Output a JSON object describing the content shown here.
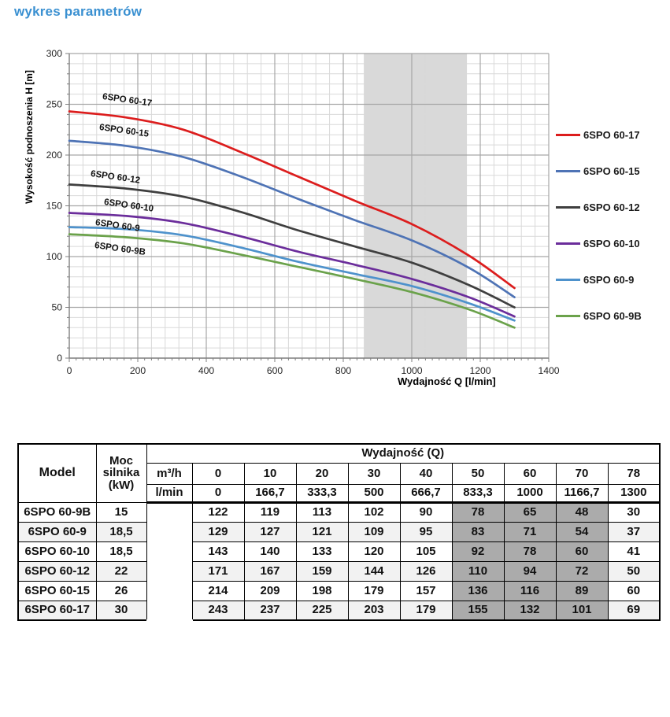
{
  "page_title": "wykres parametrów",
  "accent_color": "#3a90d1",
  "chart_data": {
    "type": "line",
    "title": "",
    "xlabel": "Wydajność Q [l/min]",
    "ylabel": "Wysokość podnoszenia H [m]",
    "xlim": [
      0,
      1400
    ],
    "ylim": [
      0,
      300
    ],
    "x_ticks": [
      "0",
      "200",
      "400",
      "600",
      "800",
      "1000",
      "1200",
      "1400"
    ],
    "y_ticks": [
      "0",
      "50",
      "100",
      "150",
      "200",
      "250",
      "300"
    ],
    "grid": "on",
    "legend_position": "right",
    "duty_range_band": {
      "from": 860,
      "to": 1160,
      "color": "#d9d9d9"
    },
    "x": [
      0,
      166.7,
      333.3,
      500,
      666.7,
      833.3,
      1000,
      1166.7,
      1300
    ],
    "series": [
      {
        "name": "6SPO 60-17",
        "color": "#dc1d1d",
        "values": [
          243,
          237,
          225,
          203,
          179,
          155,
          132,
          101,
          69
        ]
      },
      {
        "name": "6SPO 60-15",
        "color": "#4e73b5",
        "values": [
          214,
          209,
          198,
          179,
          157,
          136,
          116,
          89,
          60
        ]
      },
      {
        "name": "6SPO 60-12",
        "color": "#3f3f3f",
        "values": [
          171,
          167,
          159,
          144,
          126,
          110,
          94,
          72,
          50
        ]
      },
      {
        "name": "6SPO 60-10",
        "color": "#6b2d9b",
        "values": [
          143,
          140,
          133,
          120,
          105,
          92,
          78,
          60,
          41
        ]
      },
      {
        "name": "6SPO 60-9",
        "color": "#4e92cc",
        "values": [
          129,
          127,
          121,
          109,
          95,
          83,
          71,
          54,
          37
        ]
      },
      {
        "name": "6SPO 60-9B",
        "color": "#6ba24b",
        "values": [
          122,
          119,
          113,
          102,
          90,
          78,
          65,
          48,
          30
        ]
      }
    ]
  },
  "table": {
    "header": {
      "model": "Model",
      "power": "Moc silnika (kW)",
      "flow_group": "Wydajność (Q)",
      "unit_row_1_label": "m³/h",
      "unit_row_1_values": [
        "0",
        "10",
        "20",
        "30",
        "40",
        "50",
        "60",
        "70",
        "78"
      ],
      "unit_row_2_label": "l/min",
      "unit_row_2_values": [
        "0",
        "166,7",
        "333,3",
        "500",
        "666,7",
        "833,3",
        "1000",
        "1166,7",
        "1300"
      ]
    },
    "rows": [
      {
        "model": "6SPO 60-9B",
        "power": "15",
        "values": [
          "122",
          "119",
          "113",
          "102",
          "90",
          "78",
          "65",
          "48",
          "30"
        ]
      },
      {
        "model": "6SPO 60-9",
        "power": "18,5",
        "values": [
          "129",
          "127",
          "121",
          "109",
          "95",
          "83",
          "71",
          "54",
          "37"
        ]
      },
      {
        "model": "6SPO 60-10",
        "power": "18,5",
        "values": [
          "143",
          "140",
          "133",
          "120",
          "105",
          "92",
          "78",
          "60",
          "41"
        ]
      },
      {
        "model": "6SPO 60-12",
        "power": "22",
        "values": [
          "171",
          "167",
          "159",
          "144",
          "126",
          "110",
          "94",
          "72",
          "50"
        ]
      },
      {
        "model": "6SPO 60-15",
        "power": "26",
        "values": [
          "214",
          "209",
          "198",
          "179",
          "157",
          "136",
          "116",
          "89",
          "60"
        ]
      },
      {
        "model": "6SPO 60-17",
        "power": "30",
        "values": [
          "243",
          "237",
          "225",
          "203",
          "179",
          "155",
          "132",
          "101",
          "69"
        ]
      }
    ],
    "highlight_columns": [
      5,
      6,
      7
    ],
    "stripe_color": "#f2f2f2",
    "highlight_color": "#ababab"
  }
}
